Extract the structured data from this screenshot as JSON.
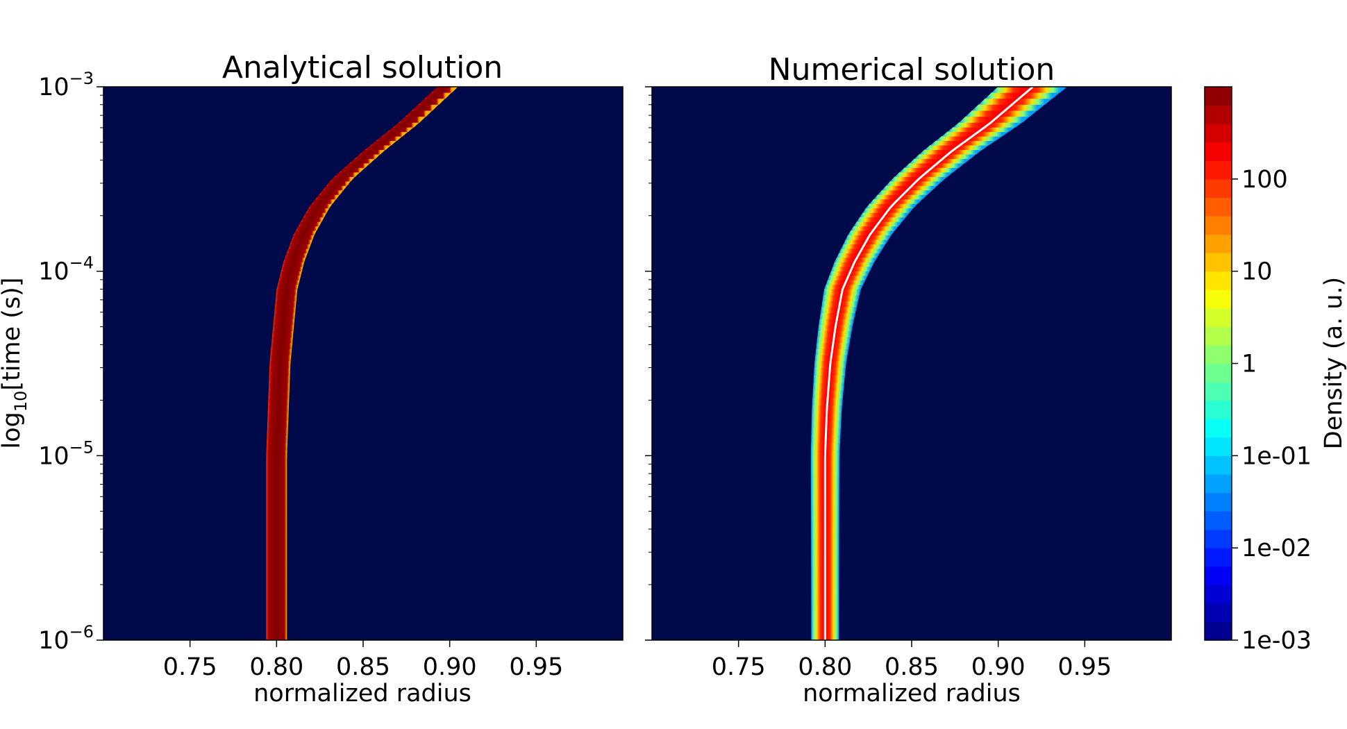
{
  "chart_data": [
    {
      "type": "heatmap",
      "title": "Analytical solution",
      "xlabel": "normalized radius",
      "ylabel_main": "log",
      "ylabel_sub": "10",
      "ylabel_rest": "[time (s)]",
      "xlim": [
        0.7,
        1.0
      ],
      "ylim_log10": [
        -6,
        -3
      ],
      "y_scale": "log",
      "xticks": [
        0.75,
        0.8,
        0.85,
        0.9,
        0.95
      ],
      "xtick_labels": [
        "0.75",
        "0.80",
        "0.85",
        "0.90",
        "0.95"
      ],
      "yticks_log10": [
        -6,
        -5,
        -4,
        -3
      ],
      "ytick_exponents": [
        "−6",
        "−5",
        "−4",
        "−3"
      ],
      "background_color": "#000a4a",
      "band_center_x": [
        0.8,
        0.8,
        0.8,
        0.801,
        0.802,
        0.804,
        0.806,
        0.81,
        0.816,
        0.825,
        0.838,
        0.856,
        0.876,
        0.899
      ],
      "band_center_y_log10": [
        -6.0,
        -5.5,
        -5.0,
        -4.75,
        -4.5,
        -4.3,
        -4.1,
        -3.95,
        -3.8,
        -3.65,
        -3.5,
        -3.35,
        -3.2,
        -3.0
      ],
      "band_halfwidth": 0.006
    },
    {
      "type": "heatmap",
      "title": "Numerical solution",
      "xlabel": "normalized radius",
      "xlim": [
        0.7,
        1.0
      ],
      "ylim_log10": [
        -6,
        -3
      ],
      "y_scale": "log",
      "xticks": [
        0.75,
        0.8,
        0.85,
        0.9,
        0.95
      ],
      "xtick_labels": [
        "0.75",
        "0.80",
        "0.85",
        "0.90",
        "0.95"
      ],
      "yticks_log10": [
        -6,
        -5,
        -4,
        -3
      ],
      "background_color": "#000a4a",
      "band_center_x": [
        0.8,
        0.8,
        0.8,
        0.801,
        0.803,
        0.806,
        0.81,
        0.817,
        0.826,
        0.838,
        0.854,
        0.873,
        0.895,
        0.92
      ],
      "band_center_y_log10": [
        -6.0,
        -5.5,
        -5.0,
        -4.75,
        -4.5,
        -4.3,
        -4.1,
        -3.95,
        -3.8,
        -3.65,
        -3.5,
        -3.35,
        -3.2,
        -3.0
      ],
      "band_halfwidth": 0.008,
      "band_halfwidth_top": 0.02,
      "center_line_color": "#ffffff"
    }
  ],
  "colorbar": {
    "label": "Density (a. u.)",
    "scale": "log",
    "ticks_log10": [
      -3,
      -2,
      -1,
      0,
      1,
      2
    ],
    "tick_labels": [
      "1e-03",
      "1e-02",
      "1e-01",
      "1",
      "10",
      "100"
    ],
    "range_log10": [
      -3,
      3
    ]
  },
  "colors": {
    "jet": [
      "#00007f",
      "#0000ff",
      "#007fff",
      "#00ffff",
      "#7fff7f",
      "#ffff00",
      "#ff7f00",
      "#ff0000",
      "#7f0000"
    ]
  }
}
